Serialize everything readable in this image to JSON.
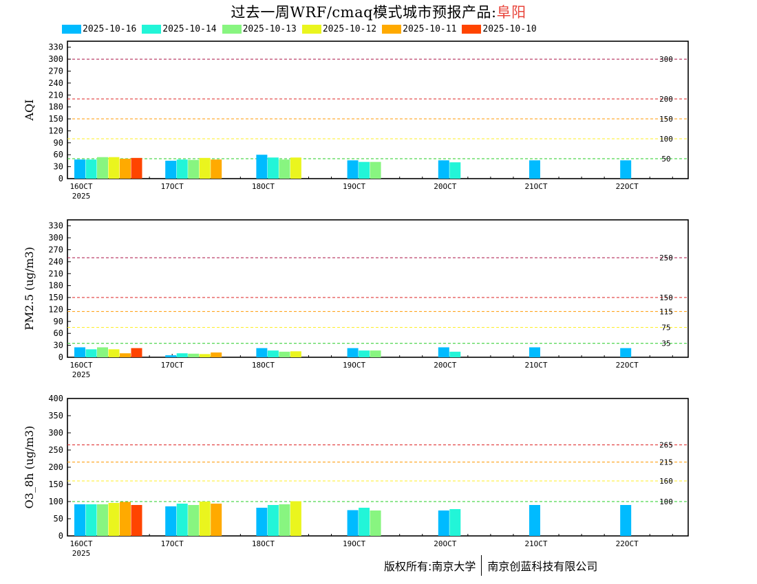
{
  "page": {
    "title_prefix": "过去一周WRF/cmaq模式城市预报产品:",
    "title_city": "阜阳",
    "copyright_owner": "版权所有:南京大学",
    "copyright_partner": "南京创蓝科技有限公司"
  },
  "legend": [
    {
      "label": "2025-10-16",
      "color": "#00bbff"
    },
    {
      "label": "2025-10-14",
      "color": "#22f5d8"
    },
    {
      "label": "2025-10-13",
      "color": "#88f580"
    },
    {
      "label": "2025-10-12",
      "color": "#eaf51e"
    },
    {
      "label": "2025-10-11",
      "color": "#ffaa00"
    },
    {
      "label": "2025-10-10",
      "color": "#ff4400"
    }
  ],
  "chart_data": [
    {
      "type": "bar",
      "ylabel": "AQI",
      "ylim": [
        0,
        345
      ],
      "yticks": [
        0,
        30,
        60,
        90,
        120,
        150,
        180,
        210,
        240,
        270,
        300,
        330
      ],
      "xticks": [
        "16OCT",
        "17OCT",
        "18OCT",
        "19OCT",
        "20OCT",
        "21OCT",
        "22OCT"
      ],
      "year_label": "2025",
      "thresholds": [
        {
          "value": 50,
          "label": "50",
          "color": "#22cc22"
        },
        {
          "value": 100,
          "label": "100",
          "color": "#ffee22"
        },
        {
          "value": 150,
          "label": "150",
          "color": "#ff9900"
        },
        {
          "value": 200,
          "label": "200",
          "color": "#dd2222"
        },
        {
          "value": 300,
          "label": "300",
          "color": "#aa1144"
        }
      ],
      "series": [
        {
          "name": "2025-10-16",
          "values": [
            48,
            45,
            60,
            46,
            46,
            46,
            46
          ]
        },
        {
          "name": "2025-10-14",
          "values": [
            48,
            48,
            53,
            42,
            41,
            null,
            null
          ]
        },
        {
          "name": "2025-10-13",
          "values": [
            54,
            47,
            48,
            42,
            null,
            null,
            null
          ]
        },
        {
          "name": "2025-10-12",
          "values": [
            54,
            52,
            53,
            null,
            null,
            null,
            null
          ]
        },
        {
          "name": "2025-10-11",
          "values": [
            50,
            48,
            null,
            null,
            null,
            null,
            null
          ]
        },
        {
          "name": "2025-10-10",
          "values": [
            52,
            null,
            null,
            null,
            null,
            null,
            null
          ]
        }
      ]
    },
    {
      "type": "bar",
      "ylabel": "PM2.5 (ug/m3)",
      "ylim": [
        0,
        345
      ],
      "yticks": [
        0,
        30,
        60,
        90,
        120,
        150,
        180,
        210,
        240,
        270,
        300,
        330
      ],
      "xticks": [
        "16OCT",
        "17OCT",
        "18OCT",
        "19OCT",
        "20OCT",
        "21OCT",
        "22OCT"
      ],
      "year_label": "2025",
      "thresholds": [
        {
          "value": 35,
          "label": "35",
          "color": "#22cc22"
        },
        {
          "value": 75,
          "label": "75",
          "color": "#ffee22"
        },
        {
          "value": 115,
          "label": "115",
          "color": "#ff9900"
        },
        {
          "value": 150,
          "label": "150",
          "color": "#dd2222"
        },
        {
          "value": 250,
          "label": "250",
          "color": "#aa1144"
        }
      ],
      "series": [
        {
          "name": "2025-10-16",
          "values": [
            25,
            5,
            23,
            23,
            25,
            25,
            23
          ]
        },
        {
          "name": "2025-10-14",
          "values": [
            20,
            10,
            17,
            17,
            14,
            null,
            null
          ]
        },
        {
          "name": "2025-10-13",
          "values": [
            25,
            9,
            14,
            17,
            null,
            null,
            null
          ]
        },
        {
          "name": "2025-10-12",
          "values": [
            20,
            8,
            15,
            null,
            null,
            null,
            null
          ]
        },
        {
          "name": "2025-10-11",
          "values": [
            10,
            12,
            null,
            null,
            null,
            null,
            null
          ]
        },
        {
          "name": "2025-10-10",
          "values": [
            23,
            null,
            null,
            null,
            null,
            null,
            null
          ]
        }
      ]
    },
    {
      "type": "bar",
      "ylabel": "O3_8h (ug/m3)",
      "ylim": [
        0,
        400
      ],
      "yticks": [
        0,
        50,
        100,
        150,
        200,
        250,
        300,
        350,
        400
      ],
      "xticks": [
        "16OCT",
        "17OCT",
        "18OCT",
        "19OCT",
        "20OCT",
        "21OCT",
        "22OCT"
      ],
      "year_label": "2025",
      "thresholds": [
        {
          "value": 100,
          "label": "100",
          "color": "#22cc22"
        },
        {
          "value": 160,
          "label": "160",
          "color": "#ffee22"
        },
        {
          "value": 215,
          "label": "215",
          "color": "#ff9900"
        },
        {
          "value": 265,
          "label": "265",
          "color": "#dd2222"
        }
      ],
      "series": [
        {
          "name": "2025-10-16",
          "values": [
            92,
            86,
            82,
            75,
            74,
            90,
            90
          ]
        },
        {
          "name": "2025-10-14",
          "values": [
            92,
            94,
            90,
            82,
            78,
            null,
            null
          ]
        },
        {
          "name": "2025-10-13",
          "values": [
            92,
            90,
            92,
            74,
            null,
            null,
            null
          ]
        },
        {
          "name": "2025-10-12",
          "values": [
            96,
            100,
            101,
            null,
            null,
            null,
            null
          ]
        },
        {
          "name": "2025-10-11",
          "values": [
            99,
            94,
            null,
            null,
            null,
            null,
            null
          ]
        },
        {
          "name": "2025-10-10",
          "values": [
            90,
            null,
            null,
            null,
            null,
            null,
            null
          ]
        }
      ]
    }
  ]
}
